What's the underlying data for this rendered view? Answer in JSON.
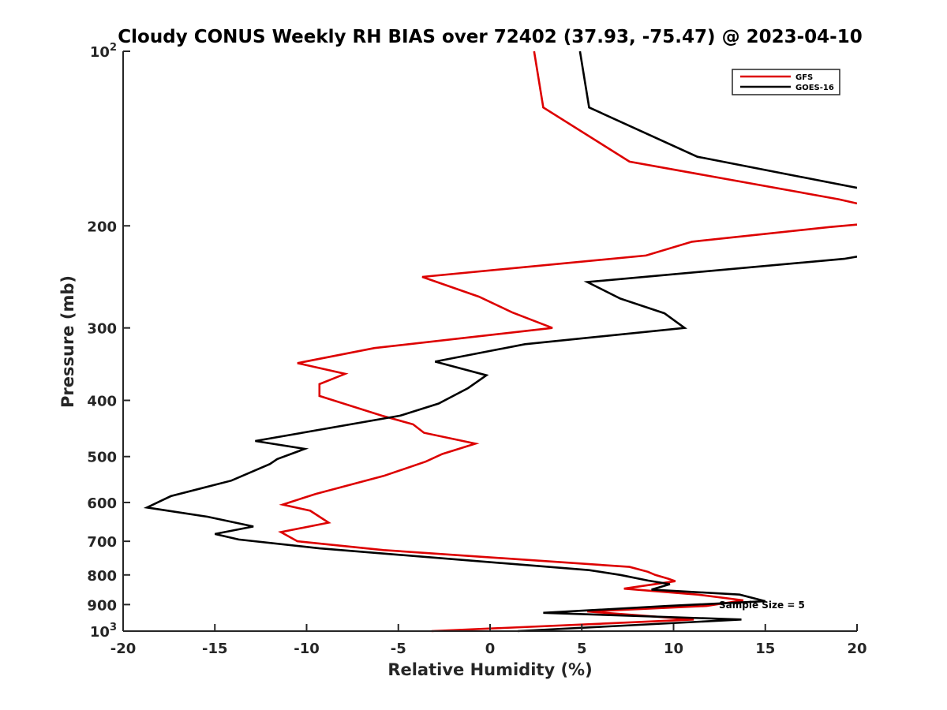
{
  "chart_data": {
    "type": "line",
    "title": "Cloudy CONUS Weekly RH BIAS over 72402 (37.93, -75.47) @ 2023-04-10",
    "xlabel": "Relative Humidity (%)",
    "ylabel": "Pressure (mb)",
    "xlim": [
      -20,
      20
    ],
    "ylim": [
      100,
      1000
    ],
    "yscale": "log",
    "y_reversed": true,
    "grid": false,
    "legend_position": "top-right",
    "x_ticks": [
      {
        "value": -20,
        "label": "-20"
      },
      {
        "value": -15,
        "label": "-15"
      },
      {
        "value": -10,
        "label": "-10"
      },
      {
        "value": -5,
        "label": "-5"
      },
      {
        "value": 0,
        "label": "0"
      },
      {
        "value": 5,
        "label": "5"
      },
      {
        "value": 10,
        "label": "10"
      },
      {
        "value": 15,
        "label": "15"
      },
      {
        "value": 20,
        "label": "20"
      }
    ],
    "y_ticks": [
      {
        "value": 100,
        "base": "10",
        "exp": "2"
      },
      {
        "value": 200,
        "base": "200",
        "exp": ""
      },
      {
        "value": 300,
        "base": "300",
        "exp": ""
      },
      {
        "value": 400,
        "base": "400",
        "exp": ""
      },
      {
        "value": 500,
        "base": "500",
        "exp": ""
      },
      {
        "value": 600,
        "base": "600",
        "exp": ""
      },
      {
        "value": 700,
        "base": "700",
        "exp": ""
      },
      {
        "value": 800,
        "base": "800",
        "exp": ""
      },
      {
        "value": 900,
        "base": "900",
        "exp": ""
      },
      {
        "value": 1000,
        "base": "10",
        "exp": "3"
      }
    ],
    "annotation": "Sample Size = 5",
    "series": [
      {
        "name": "GFS",
        "color": "#dd0000",
        "segments": [
          [
            [
              2.4,
              100
            ],
            [
              2.9,
              125
            ],
            [
              7.6,
              155
            ],
            [
              19.0,
              180
            ],
            [
              20.0,
              183
            ]
          ],
          [
            [
              20.0,
              199
            ],
            [
              18.5,
              201
            ],
            [
              11.0,
              213
            ],
            [
              8.5,
              225
            ],
            [
              -3.7,
              245
            ],
            [
              -0.6,
              265
            ],
            [
              1.2,
              282
            ],
            [
              3.4,
              300
            ],
            [
              -6.3,
              325
            ],
            [
              -10.5,
              345
            ],
            [
              -7.9,
              360
            ],
            [
              -9.3,
              375
            ],
            [
              -9.3,
              393
            ],
            [
              -5.9,
              425
            ],
            [
              -4.2,
              440
            ],
            [
              -3.6,
              455
            ],
            [
              -0.8,
              475
            ],
            [
              -2.6,
              495
            ],
            [
              -3.5,
              510
            ],
            [
              -5.8,
              540
            ],
            [
              -9.5,
              580
            ],
            [
              -11.3,
              605
            ],
            [
              -9.8,
              620
            ],
            [
              -8.8,
              650
            ],
            [
              -11.4,
              675
            ],
            [
              -10.5,
              700
            ],
            [
              -5.8,
              725
            ],
            [
              7.6,
              775
            ],
            [
              8.6,
              790
            ],
            [
              9.0,
              800
            ],
            [
              9.7,
              812
            ],
            [
              10.1,
              820
            ],
            [
              7.3,
              845
            ],
            [
              11.3,
              865
            ],
            [
              13.8,
              885
            ],
            [
              11.8,
              905
            ],
            [
              5.3,
              925
            ],
            [
              11.1,
              955
            ],
            [
              8.0,
              965
            ],
            [
              -3.2,
              1000
            ]
          ]
        ]
      },
      {
        "name": "GOES-16",
        "color": "#000000",
        "segments": [
          [
            [
              4.9,
              100
            ],
            [
              5.4,
              125
            ],
            [
              11.3,
              152
            ],
            [
              20.0,
              172
            ]
          ],
          [
            [
              20.0,
              226
            ],
            [
              19.3,
              228
            ],
            [
              5.3,
              250
            ],
            [
              7.1,
              267
            ],
            [
              9.5,
              283
            ],
            [
              10.6,
              300
            ],
            [
              1.9,
              320
            ],
            [
              -3.0,
              343
            ],
            [
              -0.2,
              362
            ],
            [
              -1.2,
              381
            ],
            [
              -2.8,
              405
            ],
            [
              -4.9,
              425
            ],
            [
              -12.8,
              470
            ],
            [
              -10.1,
              485
            ],
            [
              -11.6,
              505
            ],
            [
              -12.0,
              515
            ],
            [
              -14.1,
              550
            ],
            [
              -17.4,
              585
            ],
            [
              -18.7,
              612
            ],
            [
              -15.4,
              635
            ],
            [
              -12.9,
              660
            ],
            [
              -15.0,
              680
            ],
            [
              -13.7,
              695
            ],
            [
              -9.3,
              720
            ],
            [
              5.4,
              785
            ],
            [
              7.1,
              800
            ],
            [
              8.6,
              818
            ],
            [
              9.8,
              830
            ],
            [
              8.8,
              848
            ],
            [
              13.6,
              865
            ],
            [
              15.0,
              888
            ],
            [
              9.7,
              905
            ],
            [
              2.9,
              930
            ],
            [
              13.7,
              955
            ],
            [
              1.5,
              1000
            ]
          ]
        ]
      }
    ]
  }
}
